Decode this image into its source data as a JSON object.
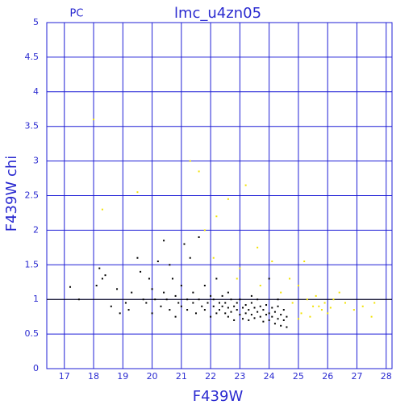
{
  "chart_data": {
    "type": "scatter",
    "title": "lmc_u4zn05",
    "subtitle": "PC",
    "x_label": "F439W",
    "y_label": "F439W chi",
    "xlim": [
      16.4,
      28.2
    ],
    "ylim": [
      0,
      5
    ],
    "xticks": [
      17,
      18,
      19,
      20,
      21,
      22,
      23,
      24,
      25,
      26,
      27,
      28
    ],
    "yticks": [
      0,
      0.5,
      1,
      1.5,
      2,
      2.5,
      3,
      3.5,
      4,
      4.5,
      5
    ],
    "grid": true,
    "reference_line": 1,
    "series": [
      {
        "color": "#000000",
        "x": [
          17.2,
          17.5,
          18.2,
          18.3,
          18.4,
          18.1,
          18.6,
          18.8,
          18.9,
          19.1,
          19.2,
          19.3,
          19.5,
          19.6,
          19.7,
          19.8,
          19.9,
          20.0,
          20.0,
          20.1,
          20.2,
          20.3,
          20.4,
          20.4,
          20.5,
          20.6,
          20.6,
          20.7,
          20.8,
          20.8,
          20.9,
          21.0,
          21.0,
          21.1,
          21.2,
          21.2,
          21.3,
          21.4,
          21.4,
          21.5,
          21.6,
          21.6,
          21.7,
          21.8,
          21.8,
          21.9,
          22.0,
          22.0,
          22.1,
          22.1,
          22.2,
          22.2,
          22.3,
          22.3,
          22.4,
          22.4,
          22.5,
          22.5,
          22.6,
          22.6,
          22.7,
          22.7,
          22.8,
          22.8,
          22.9,
          22.9,
          23.0,
          23.0,
          23.1,
          23.1,
          23.2,
          23.2,
          23.3,
          23.3,
          23.4,
          23.4,
          23.5,
          23.5,
          23.6,
          23.6,
          23.7,
          23.7,
          23.8,
          23.8,
          23.9,
          23.9,
          24.0,
          24.0,
          24.1,
          24.1,
          24.2,
          24.2,
          24.3,
          24.3,
          24.4,
          24.4,
          24.5,
          24.5,
          24.6,
          24.6,
          22.6,
          23.4,
          24.0,
          24.3
        ],
        "values": [
          1.18,
          1.0,
          1.45,
          1.3,
          1.35,
          1.2,
          0.9,
          1.15,
          0.8,
          0.95,
          0.85,
          1.1,
          1.6,
          1.4,
          1.0,
          0.95,
          1.3,
          0.8,
          1.15,
          1.0,
          1.55,
          0.9,
          1.85,
          1.1,
          1.0,
          1.5,
          0.85,
          1.3,
          1.05,
          0.75,
          0.95,
          1.2,
          0.9,
          1.8,
          1.0,
          0.85,
          1.6,
          0.95,
          1.1,
          0.8,
          1.9,
          1.0,
          0.9,
          1.2,
          0.85,
          0.95,
          1.05,
          0.75,
          0.9,
          1.0,
          0.8,
          1.3,
          0.95,
          0.85,
          0.9,
          1.05,
          0.8,
          0.95,
          0.75,
          0.88,
          1.0,
          0.82,
          0.9,
          0.7,
          0.85,
          0.95,
          0.78,
          1.0,
          0.88,
          0.72,
          0.92,
          0.8,
          0.85,
          0.7,
          0.95,
          0.78,
          0.88,
          0.73,
          0.82,
          1.0,
          0.9,
          0.75,
          0.85,
          0.68,
          0.92,
          0.78,
          0.8,
          0.7,
          0.88,
          0.75,
          0.82,
          0.65,
          0.9,
          0.72,
          0.78,
          0.62,
          0.85,
          0.7,
          0.75,
          0.6,
          1.1,
          1.05,
          1.3,
          1.0
        ]
      },
      {
        "color": "#f2e200",
        "x": [
          18.0,
          18.3,
          19.5,
          21.3,
          21.6,
          22.2,
          22.6,
          23.2,
          21.8,
          22.1,
          23.6,
          23.0,
          24.1,
          24.7,
          25.0,
          25.2,
          25.3,
          25.5,
          25.6,
          25.8,
          25.9,
          26.0,
          26.2,
          26.4,
          26.6,
          26.9,
          27.2,
          27.5,
          27.6,
          24.8,
          25.1,
          25.4,
          25.7,
          26.1,
          23.7,
          22.9,
          24.4,
          25.0
        ],
        "values": [
          3.6,
          2.3,
          2.55,
          3.0,
          2.85,
          2.2,
          2.45,
          2.65,
          2.0,
          1.6,
          1.75,
          1.45,
          1.55,
          1.3,
          1.2,
          1.55,
          1.0,
          0.9,
          1.05,
          0.85,
          0.95,
          0.8,
          1.0,
          1.1,
          0.95,
          0.85,
          0.9,
          0.75,
          0.95,
          0.95,
          0.8,
          0.75,
          0.9,
          0.88,
          1.2,
          1.3,
          1.1,
          0.72
        ]
      }
    ]
  }
}
